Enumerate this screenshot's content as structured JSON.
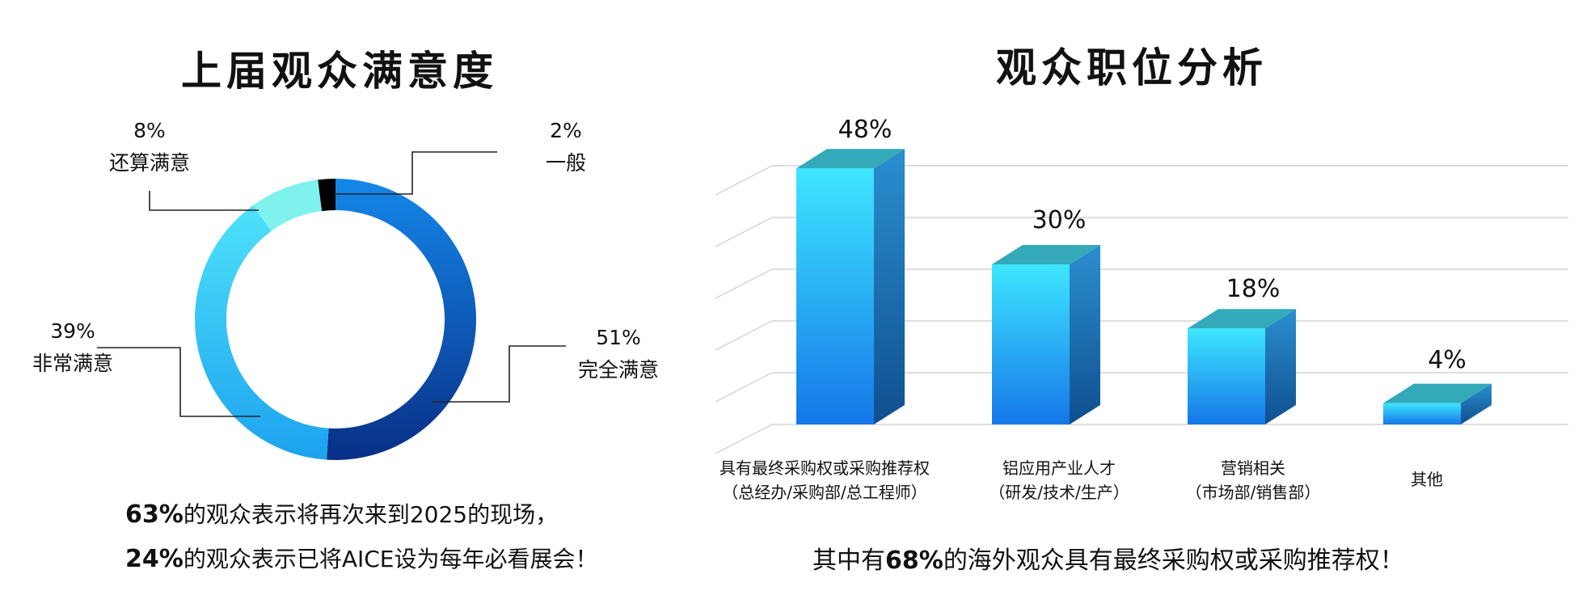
{
  "left_title": "上届观众满意度",
  "right_title": "观众职位分析",
  "left_notes": [
    {
      "bold": "63%",
      "text": "的观众表示将再次来到2025的现场，"
    },
    {
      "bold": "24%",
      "text": "的观众表示已将AICE设为每年必看展会！"
    }
  ],
  "right_note": {
    "pre": "其中有",
    "bold": "68%",
    "text": "的海外观众具有最终采购权或采购推荐权！"
  },
  "chart_data": [
    {
      "type": "pie",
      "title": "上届观众满意度",
      "slices": [
        {
          "name": "完全满意",
          "label": "51%",
          "value": 51,
          "color": "#0b64c8"
        },
        {
          "name": "非常满意",
          "label": "39%",
          "value": 39,
          "color": "#2fc3f0"
        },
        {
          "name": "还算满意",
          "label": "8%",
          "value": 8,
          "color": "#7ff2ee"
        },
        {
          "name": "一般",
          "label": "2%",
          "value": 2,
          "color": "#000000"
        }
      ]
    },
    {
      "type": "bar",
      "title": "观众职位分析",
      "categories": [
        [
          "具有最终采购权或采购推荐权",
          "（总经办/采购部/总工程师）"
        ],
        [
          "铝应用产业人才",
          "（研发/技术/生产）"
        ],
        [
          "营销相关",
          "（市场部/销售部）"
        ],
        [
          "其他"
        ]
      ],
      "values": [
        48,
        30,
        18,
        4
      ],
      "value_labels": [
        "48%",
        "30%",
        "18%",
        "4%"
      ],
      "ylim": [
        0,
        55
      ],
      "grid": true,
      "colors": {
        "front_top": "#3ee6ff",
        "front_bottom": "#1577e8",
        "side": "#1c6fb0",
        "top": "#33a9b9"
      }
    }
  ]
}
